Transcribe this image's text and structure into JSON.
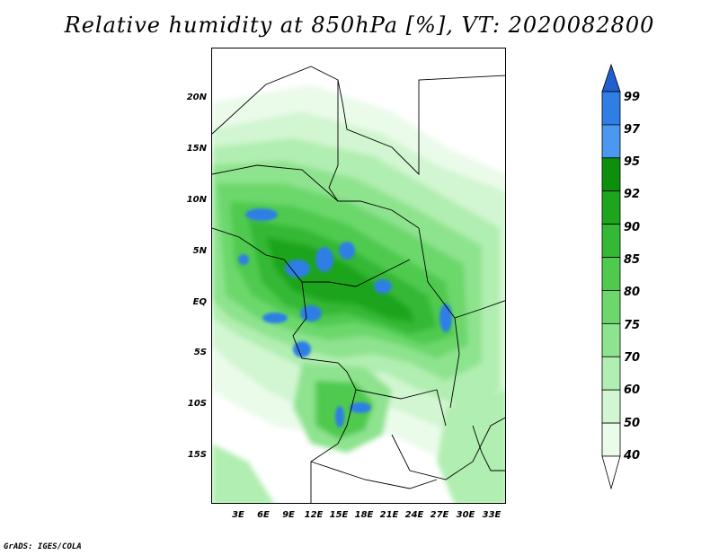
{
  "title": "Relative humidity at 850hPa [%], VT: 2020082800",
  "variable": "Relative humidity",
  "level": "850hPa",
  "units": "%",
  "valid_time": "2020082800",
  "credit": "GrADS: IGES/COLA",
  "map": {
    "lon_labels": [
      "3E",
      "6E",
      "9E",
      "12E",
      "15E",
      "18E",
      "21E",
      "24E",
      "27E",
      "30E",
      "33E"
    ],
    "lat_labels": [
      "20N",
      "15N",
      "10N",
      "5N",
      "EQ",
      "5S",
      "10S",
      "15S"
    ],
    "lon_range": [
      0,
      34
    ],
    "lat_range": [
      -19,
      24
    ]
  },
  "colorbar": {
    "levels": [
      "99",
      "97",
      "95",
      "92",
      "90",
      "85",
      "80",
      "75",
      "70",
      "60",
      "50",
      "40"
    ],
    "colors": [
      "#1f5fd0",
      "#2f7ee6",
      "#4a98f0",
      "#0d8f0d",
      "#1ea51e",
      "#35b835",
      "#4fca4f",
      "#6cd86c",
      "#8ee38e",
      "#b1eeb1",
      "#d1f6d1",
      "#eafbea",
      "#ffffff"
    ]
  },
  "colors": {
    "background": "#ffffff",
    "border": "#000000"
  }
}
